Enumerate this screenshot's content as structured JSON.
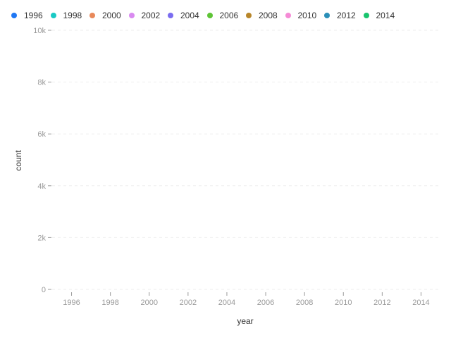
{
  "chart_data": {
    "type": "bar",
    "categories": [
      "1996",
      "1998",
      "2000",
      "2002",
      "2004",
      "2006",
      "2008",
      "2010",
      "2012",
      "2014"
    ],
    "series": [
      {
        "name": "1996",
        "values": [
          0,
          0,
          0,
          0,
          0,
          0,
          0,
          0,
          0,
          0
        ]
      },
      {
        "name": "1998",
        "values": [
          0,
          0,
          0,
          0,
          0,
          0,
          0,
          0,
          0,
          0
        ]
      },
      {
        "name": "2000",
        "values": [
          0,
          0,
          0,
          0,
          0,
          0,
          0,
          0,
          0,
          0
        ]
      },
      {
        "name": "2002",
        "values": [
          0,
          0,
          0,
          0,
          0,
          0,
          0,
          0,
          0,
          0
        ]
      },
      {
        "name": "2004",
        "values": [
          0,
          0,
          0,
          0,
          0,
          0,
          0,
          0,
          0,
          0
        ]
      },
      {
        "name": "2006",
        "values": [
          0,
          0,
          0,
          0,
          0,
          0,
          0,
          0,
          0,
          0
        ]
      },
      {
        "name": "2008",
        "values": [
          0,
          0,
          0,
          0,
          0,
          0,
          0,
          0,
          0,
          0
        ]
      },
      {
        "name": "2010",
        "values": [
          0,
          0,
          0,
          0,
          0,
          0,
          0,
          0,
          0,
          0
        ]
      },
      {
        "name": "2012",
        "values": [
          0,
          0,
          0,
          0,
          0,
          0,
          0,
          0,
          0,
          0
        ]
      },
      {
        "name": "2014",
        "values": [
          0,
          0,
          0,
          0,
          0,
          0,
          0,
          0,
          0,
          0
        ]
      }
    ],
    "title": "",
    "xlabel": "year",
    "ylabel": "count",
    "xlim": [
      1995,
      2015
    ],
    "ylim": [
      0,
      10000
    ],
    "x_ticks": [
      1996,
      1998,
      2000,
      2002,
      2004,
      2006,
      2008,
      2010,
      2012,
      2014
    ],
    "x_tick_labels": [
      "1996",
      "1998",
      "2000",
      "2002",
      "2004",
      "2006",
      "2008",
      "2010",
      "2012",
      "2014"
    ],
    "y_ticks": [
      0,
      2000,
      4000,
      6000,
      8000,
      10000
    ],
    "y_tick_labels": [
      "0",
      "2k",
      "4k",
      "6k",
      "8k",
      "10k"
    ],
    "grid": true,
    "legend_position": "top-left",
    "legend": [
      {
        "label": "1996",
        "color": "#1f77f4"
      },
      {
        "label": "1998",
        "color": "#19c9c4"
      },
      {
        "label": "2000",
        "color": "#e8895a"
      },
      {
        "label": "2002",
        "color": "#d98af0"
      },
      {
        "label": "2004",
        "color": "#7a6cf0"
      },
      {
        "label": "2006",
        "color": "#5ec436"
      },
      {
        "label": "2008",
        "color": "#b8862a"
      },
      {
        "label": "2010",
        "color": "#f58bd6"
      },
      {
        "label": "2012",
        "color": "#2a8fb8"
      },
      {
        "label": "2014",
        "color": "#19c46e"
      }
    ]
  }
}
